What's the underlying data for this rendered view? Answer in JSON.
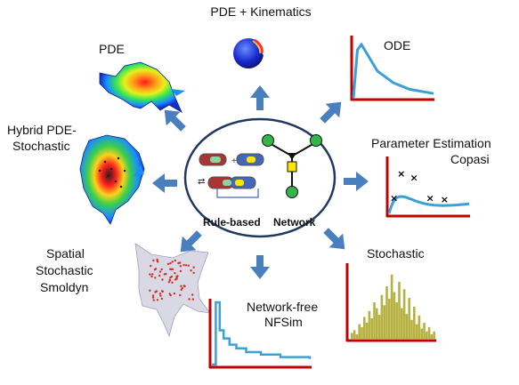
{
  "labels": {
    "pde_kinematics": "PDE + Kinematics",
    "pde": "PDE",
    "ode": "ODE",
    "hybrid_line1": "Hybrid PDE-",
    "hybrid_line2": "Stochastic",
    "param_line1": "Parameter Estimation",
    "param_line2": "Copasi",
    "spatial_line1": "Spatial",
    "spatial_line2": "Stochastic",
    "spatial_line3": "Smoldyn",
    "stochastic": "Stochastic",
    "networkfree_line1": "Network-free",
    "networkfree_line2": "NFSim",
    "rule_based": "Rule-based",
    "network": "Network"
  },
  "colors": {
    "arrow": "#4a7fbf",
    "axis": "#c00000",
    "curve": "#3aa0d8",
    "node": "#33b54a",
    "yellow_node": "#ffe600",
    "histogram": "#b6b140",
    "ellipse_border": "#1f3864",
    "spatial_dots": "#d03020"
  },
  "chart_data": [
    {
      "type": "line",
      "title": "ODE",
      "series": [
        {
          "x": [
            0,
            0.05,
            0.1,
            0.2,
            0.3,
            0.5,
            0.7,
            1.0
          ],
          "values": [
            0,
            0.9,
            1.0,
            0.75,
            0.5,
            0.28,
            0.16,
            0.08
          ]
        }
      ],
      "xlabel": "",
      "ylabel": ""
    },
    {
      "type": "scatter",
      "title": "Parameter Estimation",
      "x": [
        0.05,
        0.14,
        0.3,
        0.5,
        0.68
      ],
      "values": [
        0.3,
        0.78,
        0.7,
        0.3,
        0.28
      ],
      "xlabel": "",
      "ylabel": ""
    },
    {
      "type": "bar",
      "title": "Stochastic",
      "values": [
        0.08,
        0.12,
        0.06,
        0.2,
        0.16,
        0.3,
        0.22,
        0.38,
        0.28,
        0.5,
        0.42,
        0.33,
        0.6,
        0.46,
        0.72,
        0.55,
        0.88,
        0.64,
        0.5,
        0.78,
        0.42,
        0.68,
        0.34,
        0.56,
        0.26,
        0.44,
        0.2,
        0.32,
        0.14,
        0.22,
        0.1,
        0.16,
        0.06,
        0.1
      ],
      "xlabel": "",
      "ylabel": ""
    },
    {
      "type": "line",
      "title": "Network-free",
      "series": [
        {
          "x": [
            0,
            0.04,
            0.08,
            0.12,
            0.18,
            0.25,
            0.35,
            0.5,
            0.7,
            1.0
          ],
          "values": [
            0,
            1.0,
            0.55,
            0.42,
            0.32,
            0.26,
            0.2,
            0.16,
            0.12,
            0.09
          ]
        }
      ],
      "xlabel": "",
      "ylabel": ""
    }
  ]
}
